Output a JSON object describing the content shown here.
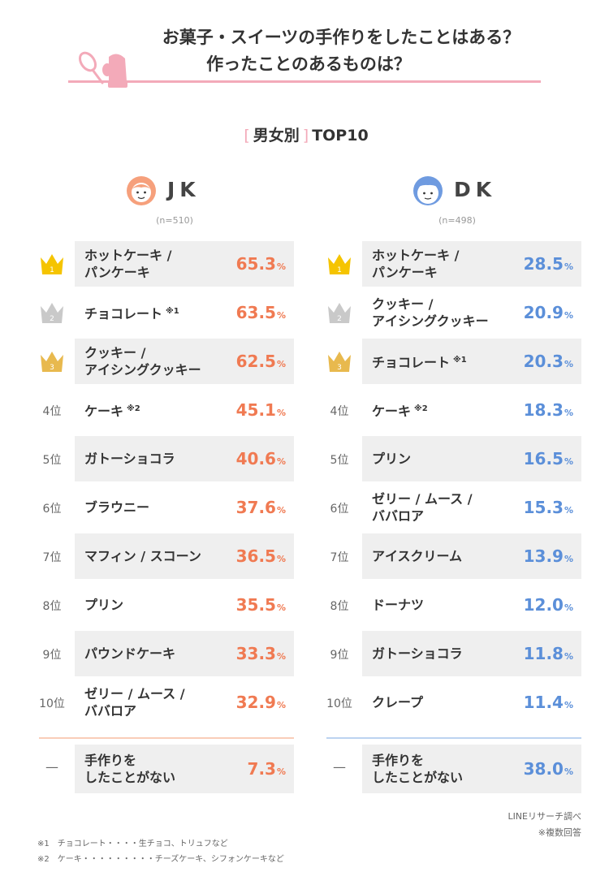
{
  "title": {
    "line1": "お菓子・スイーツの手作りをしたことはある？",
    "line2": "作ったことのあるものは？"
  },
  "section": {
    "label": "男女別",
    "suffix": "TOP10"
  },
  "colors": {
    "pink": "#f3aab9",
    "jk_accent": "#f07a52",
    "dk_accent": "#5b8fd9",
    "gold": "#f5c400",
    "silver": "#c9c9c9",
    "bronze": "#e8b94e"
  },
  "chart_data": [
    {
      "type": "table",
      "group": "JK",
      "n_label": "(n=510)",
      "unit": "%",
      "rows": [
        {
          "rank": "1",
          "label": "ホットケーキ / \nパンケーキ",
          "note": "",
          "value": "65.3"
        },
        {
          "rank": "2",
          "label": "チョコレート",
          "note": "※1",
          "value": "63.5"
        },
        {
          "rank": "3",
          "label": "クッキー / \nアイシングクッキー",
          "note": "",
          "value": "62.5"
        },
        {
          "rank": "4位",
          "label": "ケーキ",
          "note": "※2",
          "value": "45.1"
        },
        {
          "rank": "5位",
          "label": "ガトーショコラ",
          "note": "",
          "value": "40.6"
        },
        {
          "rank": "6位",
          "label": "ブラウニー",
          "note": "",
          "value": "37.6"
        },
        {
          "rank": "7位",
          "label": "マフィン / スコーン",
          "note": "",
          "value": "36.5"
        },
        {
          "rank": "8位",
          "label": "プリン",
          "note": "",
          "value": "35.5"
        },
        {
          "rank": "9位",
          "label": "パウンドケーキ",
          "note": "",
          "value": "33.3"
        },
        {
          "rank": "10位",
          "label": "ゼリー / ムース / \nババロア",
          "note": "",
          "value": "32.9"
        }
      ],
      "none_row": {
        "rank": "—",
        "label": "手作りを\nしたことがない",
        "value": "7.3"
      }
    },
    {
      "type": "table",
      "group": "DK",
      "n_label": "(n=498)",
      "unit": "%",
      "rows": [
        {
          "rank": "1",
          "label": "ホットケーキ / \nパンケーキ",
          "note": "",
          "value": "28.5"
        },
        {
          "rank": "2",
          "label": "クッキー / \nアイシングクッキー",
          "note": "",
          "value": "20.9"
        },
        {
          "rank": "3",
          "label": "チョコレート",
          "note": "※1",
          "value": "20.3"
        },
        {
          "rank": "4位",
          "label": "ケーキ",
          "note": "※2",
          "value": "18.3"
        },
        {
          "rank": "5位",
          "label": "プリン",
          "note": "",
          "value": "16.5"
        },
        {
          "rank": "6位",
          "label": "ゼリー / ムース / \nババロア",
          "note": "",
          "value": "15.3"
        },
        {
          "rank": "7位",
          "label": "アイスクリーム",
          "note": "",
          "value": "13.9"
        },
        {
          "rank": "8位",
          "label": "ドーナツ",
          "note": "",
          "value": "12.0"
        },
        {
          "rank": "9位",
          "label": "ガトーショコラ",
          "note": "",
          "value": "11.8"
        },
        {
          "rank": "10位",
          "label": "クレープ",
          "note": "",
          "value": "11.4"
        }
      ],
      "none_row": {
        "rank": "—",
        "label": "手作りを\nしたことがない",
        "value": "38.0"
      }
    }
  ],
  "footer": {
    "source": "LINEリサーチ調べ",
    "multi": "※複数回答",
    "note1": "※1　チョコレート・・・・生チョコ、トリュフなど",
    "note2": "※2　ケーキ・・・・・・・・・チーズケーキ、シフォンケーキなど"
  }
}
